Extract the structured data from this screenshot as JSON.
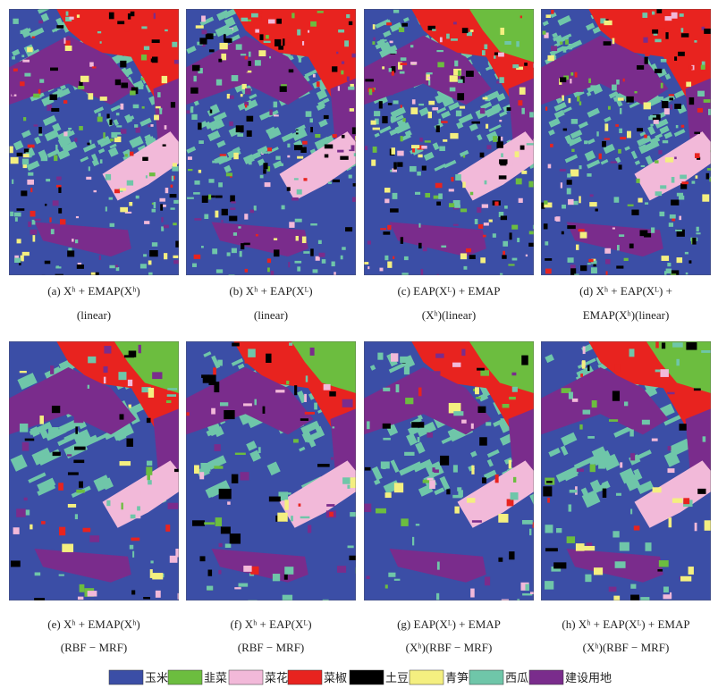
{
  "panels": [
    {
      "caption": [
        "(a) Xʰ + EMAP(Xʰ)",
        "(linear)"
      ]
    },
    {
      "caption": [
        "(b) Xʰ + EAP(Xᴸ)",
        "(linear)"
      ]
    },
    {
      "caption": [
        "(c) EAP(Xᴸ) + EMAP",
        "(Xʰ)(linear)"
      ]
    },
    {
      "caption": [
        "(d) Xʰ + EAP(Xᴸ) +",
        "EMAP(Xʰ)(linear)"
      ]
    },
    {
      "caption": [
        "(e) Xʰ + EMAP(Xʰ)",
        "(RBF − MRF)"
      ]
    },
    {
      "caption": [
        "(f) Xʰ + EAP(Xᴸ)",
        "(RBF − MRF)"
      ]
    },
    {
      "caption": [
        "(g) EAP(Xᴸ) + EMAP",
        "(Xʰ)(RBF − MRF)"
      ]
    },
    {
      "caption": [
        "(h) Xʰ + EAP(Xᴸ) + EMAP",
        "(Xʰ)(RBF − MRF)"
      ]
    }
  ],
  "legend": [
    {
      "label": "玉米",
      "color": "#3b4ea6"
    },
    {
      "label": "韭菜",
      "color": "#6cbd3f"
    },
    {
      "label": "菜花",
      "color": "#f2b9d9"
    },
    {
      "label": "菜椒",
      "color": "#e8231f"
    },
    {
      "label": "土豆",
      "color": "#000000"
    },
    {
      "label": "青笋",
      "color": "#f4ef80"
    },
    {
      "label": "西瓜",
      "color": "#6fc6a9"
    },
    {
      "label": "建设用地",
      "color": "#7a2c8c"
    }
  ]
}
